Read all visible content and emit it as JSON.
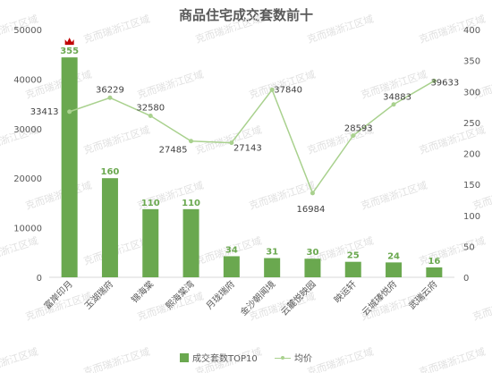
{
  "chart_data": {
    "type": "bar",
    "title": "商品住宅成交套数前十",
    "categories": [
      "富岸印月",
      "玉湖瑞府",
      "锦海棠",
      "熙海棠湾",
      "月珑瑞府",
      "金沙朝闻境",
      "云麓悦映园",
      "映运轩",
      "云城瑧悦府",
      "武瑞云府"
    ],
    "series": [
      {
        "name": "成交套数TOP10",
        "type": "bar",
        "axis": "right",
        "values": [
          355,
          160,
          110,
          110,
          34,
          31,
          30,
          25,
          24,
          16
        ],
        "color": "#6aa84f"
      },
      {
        "name": "均价",
        "type": "line",
        "axis": "left",
        "values": [
          33413,
          36229,
          32580,
          27485,
          27143,
          37840,
          16984,
          28593,
          34883,
          39633
        ],
        "color": "#a9d18e"
      }
    ],
    "left_axis": {
      "min": 0,
      "max": 50000,
      "ticks": [
        0,
        10000,
        20000,
        30000,
        40000,
        50000
      ]
    },
    "right_axis": {
      "min": 0,
      "max": 400,
      "ticks": [
        0,
        50,
        100,
        150,
        200,
        250,
        300,
        350,
        400
      ]
    },
    "legend_position": "bottom",
    "grid": false,
    "crown_icon": "crown-icon",
    "crown_color": "#c00000",
    "watermark": "克而瑞浙江区域"
  }
}
